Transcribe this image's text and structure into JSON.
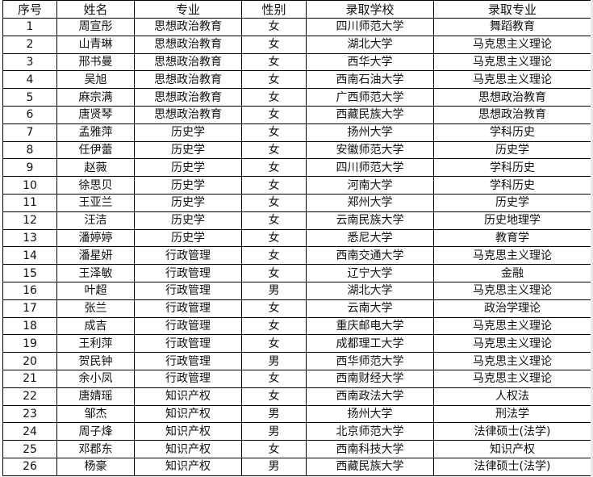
{
  "headers": [
    "序号",
    "姓名",
    "专业",
    "性别",
    "录取学校",
    "录取专业"
  ],
  "rows": [
    [
      "1",
      "周宣彤",
      "思想政治教育",
      "女",
      "四川师范大学",
      "舞蹈教育"
    ],
    [
      "2",
      "山青琳",
      "思想政治教育",
      "女",
      "湖北大学",
      "马克思主义理论"
    ],
    [
      "3",
      "邢书曼",
      "思想政治教育",
      "女",
      "西华大学",
      "马克思主义理论"
    ],
    [
      "4",
      "吴旭",
      "思想政治教育",
      "女",
      "西南石油大学",
      "马克思主义理论"
    ],
    [
      "5",
      "麻宗满",
      "思想政治教育",
      "女",
      "广西师范大学",
      "思想政治教育"
    ],
    [
      "6",
      "唐贤琴",
      "思想政治教育",
      "女",
      "西藏民族大学",
      "思想政治教育"
    ],
    [
      "7",
      "孟雅萍",
      "历史学",
      "女",
      "扬州大学",
      "学科历史"
    ],
    [
      "8",
      "任伊蕾",
      "历史学",
      "女",
      "安徽师范大学",
      "历史学"
    ],
    [
      "9",
      "赵薇",
      "历史学",
      "女",
      "四川师范大学",
      "学科历史"
    ],
    [
      "10",
      "徐思贝",
      "历史学",
      "女",
      "河南大学",
      "学科历史"
    ],
    [
      "11",
      "王亚兰",
      "历史学",
      "女",
      "郑州大学",
      "历史学"
    ],
    [
      "12",
      "汪洁",
      "历史学",
      "女",
      "云南民族大学",
      "历史地理学"
    ],
    [
      "13",
      "潘婷婷",
      "历史学",
      "女",
      "悉尼大学",
      "教育学"
    ],
    [
      "14",
      "潘星妍",
      "行政管理",
      "女",
      "西南交通大学",
      "马克思主义理论"
    ],
    [
      "15",
      "王泽敏",
      "行政管理",
      "女",
      "辽宁大学",
      "金融"
    ],
    [
      "16",
      "叶超",
      "行政管理",
      "男",
      "湖北大学",
      "马克思主义理论"
    ],
    [
      "17",
      "张兰",
      "行政管理",
      "女",
      "云南大学",
      "政治学理论"
    ],
    [
      "18",
      "成吉",
      "行政管理",
      "女",
      "重庆邮电大学",
      "马克思主义理论"
    ],
    [
      "19",
      "王利萍",
      "行政管理",
      "女",
      "成都理工大学",
      "马克思主义理论"
    ],
    [
      "20",
      "贺民钟",
      "行政管理",
      "男",
      "西华师范大学",
      "马克思主义理论"
    ],
    [
      "21",
      "余小凤",
      "行政管理",
      "女",
      "西南财经大学",
      "马克思主义理论"
    ],
    [
      "22",
      "唐婧瑶",
      "知识产权",
      "女",
      "西南政法大学",
      "人权法"
    ],
    [
      "23",
      "邹杰",
      "知识产权",
      "男",
      "扬州大学",
      "刑法学"
    ],
    [
      "24",
      "周子烽",
      "知识产权",
      "男",
      "北京师范大学",
      "法律硕士(法学)"
    ],
    [
      "25",
      "邓郡东",
      "知识产权",
      "女",
      "西南科技大学",
      "知识产权"
    ],
    [
      "26",
      "杨豪",
      "知识产权",
      "男",
      "西藏民族大学",
      "法律硕士(法学)"
    ]
  ]
}
